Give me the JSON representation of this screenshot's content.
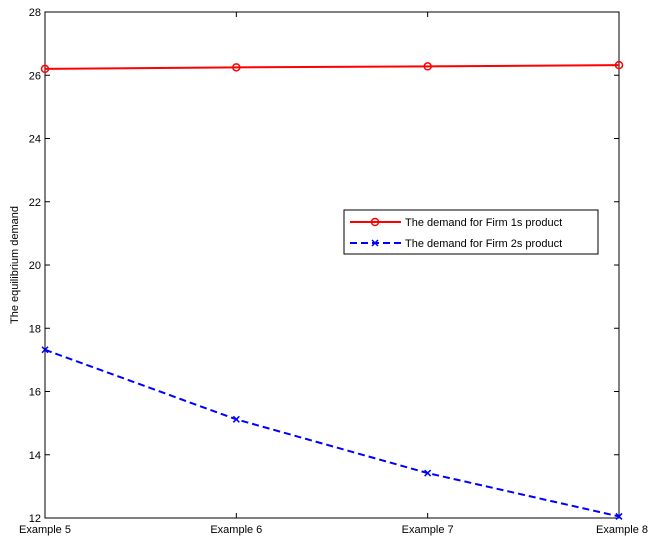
{
  "chart_data": {
    "type": "line",
    "title": "",
    "xlabel": "",
    "ylabel": "The equilibrium demand",
    "categories": [
      "Example 5",
      "Example 6",
      "Example 7",
      "Example 8"
    ],
    "ylim": [
      12,
      28
    ],
    "yticks": [
      12,
      14,
      16,
      18,
      20,
      22,
      24,
      26,
      28
    ],
    "grid": false,
    "legend_position": "right",
    "series": [
      {
        "name": "The demand for Firm 1s product",
        "values": [
          26.2,
          26.25,
          26.28,
          26.32
        ],
        "color": "#ff0000",
        "line_style": "solid",
        "marker": "circle"
      },
      {
        "name": "The demand for Firm 2s product",
        "values": [
          17.32,
          15.12,
          13.42,
          12.05
        ],
        "color": "#0000ff",
        "line_style": "dashed",
        "marker": "x"
      }
    ]
  }
}
